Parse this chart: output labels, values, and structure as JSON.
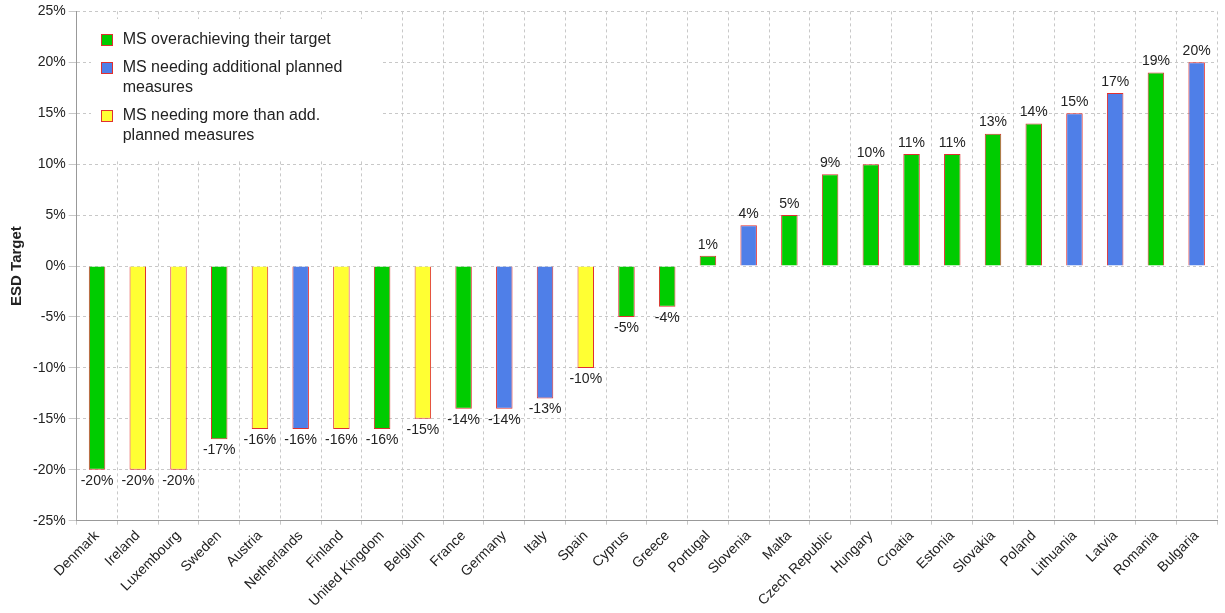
{
  "chart_data": {
    "type": "bar",
    "ylabel": "ESD Target",
    "categories": [
      "Denmark",
      "Ireland",
      "Luxembourg",
      "Sweden",
      "Austria",
      "Netherlands",
      "Finland",
      "United Kingdom",
      "Belgium",
      "France",
      "Germany",
      "Italy",
      "Spain",
      "Cyprus",
      "Greece",
      "Portugal",
      "Slovenia",
      "Malta",
      "Czech Republic",
      "Hungary",
      "Croatia",
      "Estonia",
      "Slovakia",
      "Poland",
      "Lithuania",
      "Latvia",
      "Romania",
      "Bulgaria"
    ],
    "series": [
      {
        "name": "MS overachieving their target",
        "color": "#00cc00",
        "values": [
          -20,
          null,
          null,
          -17,
          null,
          null,
          null,
          -16,
          null,
          -14,
          null,
          null,
          null,
          -5,
          -4,
          1,
          null,
          5,
          9,
          10,
          11,
          11,
          13,
          14,
          null,
          null,
          19,
          null
        ],
        "value_labels": [
          "-20%",
          null,
          null,
          "-17%",
          null,
          null,
          null,
          "-16%",
          null,
          "-14%",
          null,
          null,
          null,
          "-5%",
          "-4%",
          "1%",
          null,
          "5%",
          "9%",
          "10%",
          "11%",
          "11%",
          "13%",
          "14%",
          null,
          null,
          "19%",
          null
        ]
      },
      {
        "name": "MS needing additional planned measures",
        "color": "#4f7fe8",
        "values": [
          null,
          null,
          null,
          null,
          null,
          -16,
          null,
          null,
          null,
          null,
          -14,
          -13,
          null,
          null,
          null,
          null,
          4,
          null,
          null,
          null,
          null,
          null,
          null,
          null,
          15,
          17,
          null,
          20
        ],
        "value_labels": [
          null,
          null,
          null,
          null,
          null,
          "-16%",
          null,
          null,
          null,
          null,
          "-14%",
          "-13%",
          null,
          null,
          null,
          null,
          "4%",
          null,
          null,
          null,
          null,
          null,
          null,
          null,
          "15%",
          "17%",
          null,
          "20%"
        ]
      },
      {
        "name": "MS needing more than add. planned measures",
        "color": "#ffff33",
        "values": [
          null,
          -20,
          -20,
          null,
          -16,
          null,
          -16,
          null,
          -15,
          null,
          null,
          null,
          -10,
          null,
          null,
          null,
          null,
          null,
          null,
          null,
          null,
          null,
          null,
          null,
          null,
          null,
          null,
          null
        ],
        "value_labels": [
          null,
          "-20%",
          "-20%",
          null,
          "-16%",
          null,
          "-16%",
          null,
          "-15%",
          null,
          null,
          null,
          "-10%",
          null,
          null,
          null,
          null,
          null,
          null,
          null,
          null,
          null,
          null,
          null,
          null,
          null,
          null,
          null
        ]
      }
    ],
    "ylim": [
      -25,
      25
    ],
    "yticks": [
      {
        "value": -25,
        "label": "-25%"
      },
      {
        "value": -20,
        "label": "-20%"
      },
      {
        "value": -15,
        "label": "-15%"
      },
      {
        "value": -10,
        "label": "-10%"
      },
      {
        "value": -5,
        "label": "-5%"
      },
      {
        "value": 0,
        "label": "0%"
      },
      {
        "value": 5,
        "label": "5%"
      },
      {
        "value": 10,
        "label": "10%"
      },
      {
        "value": 15,
        "label": "15%"
      },
      {
        "value": 20,
        "label": "20%"
      },
      {
        "value": 25,
        "label": "25%"
      }
    ],
    "grid": true,
    "legend": "top left"
  }
}
